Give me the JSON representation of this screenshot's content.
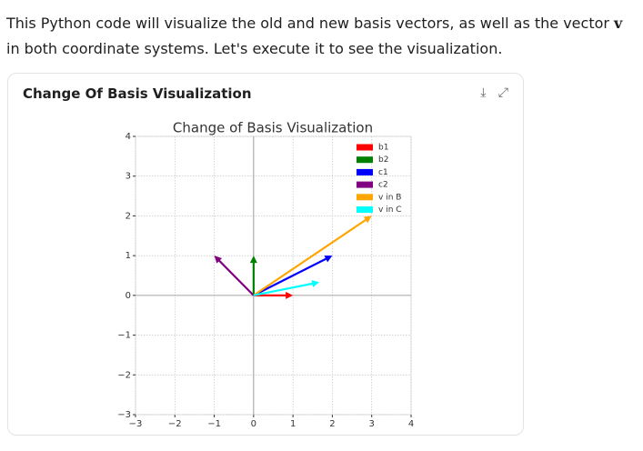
{
  "message": [
    "This Python code will visualize the old and new basis vectors, as well as the vector ",
    "v",
    " in both coordinate systems. Let's execute it to see the visualization."
  ],
  "card": {
    "title": "Change Of Basis Visualization"
  },
  "chart_data": {
    "type": "quiver",
    "title": "Change of Basis Visualization",
    "series": [
      {
        "name": "b1",
        "color": "#ff0000",
        "x": 1,
        "y": 0
      },
      {
        "name": "b2",
        "color": "#008000",
        "x": 0,
        "y": 1
      },
      {
        "name": "c1",
        "color": "#0000ff",
        "x": 2,
        "y": 1
      },
      {
        "name": "c2",
        "color": "#800080",
        "x": -1,
        "y": 1
      },
      {
        "name": "v in B",
        "color": "#ffa500",
        "x": 3,
        "y": 2
      },
      {
        "name": "v in C",
        "color": "#00ffff",
        "x": 1.67,
        "y": 0.33
      }
    ],
    "xlim": [
      -3,
      4
    ],
    "ylim": [
      -3,
      4
    ],
    "xticks": [
      {
        "value": -3,
        "label": "−3"
      },
      {
        "value": -2,
        "label": "−2"
      },
      {
        "value": -1,
        "label": "−1"
      },
      0,
      1,
      2,
      3,
      4
    ],
    "yticks": [
      {
        "value": -3,
        "label": "−3"
      },
      {
        "value": -2,
        "label": "−2"
      },
      {
        "value": -1,
        "label": "−1"
      },
      0,
      1,
      2,
      3,
      4
    ],
    "grid": true,
    "legend": "upper right"
  }
}
